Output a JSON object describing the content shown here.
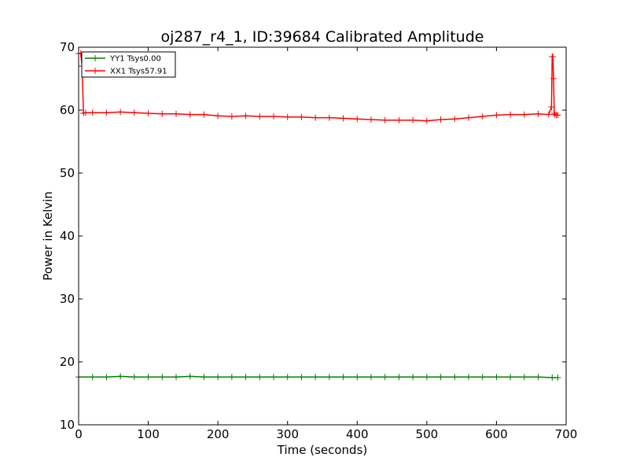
{
  "chart_data": {
    "type": "line",
    "title": "oj287_r4_1, ID:39684 Calibrated Amplitude",
    "xlabel": "Time (seconds)",
    "ylabel": "Power in Kelvin",
    "xlim": [
      0,
      700
    ],
    "ylim": [
      10,
      70
    ],
    "xticks": [
      0,
      100,
      200,
      300,
      400,
      500,
      600,
      700
    ],
    "yticks": [
      10,
      20,
      30,
      40,
      50,
      60,
      70
    ],
    "grid": false,
    "legend_position": "top-left",
    "series": [
      {
        "name": "YY1 Tsys0.00",
        "color": "#008000",
        "marker": "+",
        "x": [
          0,
          20,
          40,
          60,
          80,
          100,
          120,
          140,
          160,
          180,
          200,
          220,
          240,
          260,
          280,
          300,
          320,
          340,
          360,
          380,
          400,
          420,
          440,
          460,
          480,
          500,
          520,
          540,
          560,
          580,
          600,
          620,
          640,
          660,
          680,
          688
        ],
        "y": [
          17.6,
          17.6,
          17.6,
          17.7,
          17.6,
          17.6,
          17.6,
          17.6,
          17.7,
          17.6,
          17.6,
          17.6,
          17.6,
          17.6,
          17.6,
          17.6,
          17.6,
          17.6,
          17.6,
          17.6,
          17.6,
          17.6,
          17.6,
          17.6,
          17.6,
          17.6,
          17.6,
          17.6,
          17.6,
          17.6,
          17.6,
          17.6,
          17.6,
          17.6,
          17.5,
          17.5
        ]
      },
      {
        "name": "XX1 Tsys57.91",
        "color": "#ff0000",
        "marker": "+",
        "x": [
          0,
          3,
          5,
          7,
          10,
          20,
          40,
          60,
          80,
          100,
          120,
          140,
          160,
          180,
          200,
          220,
          240,
          260,
          280,
          300,
          320,
          340,
          360,
          380,
          400,
          420,
          440,
          460,
          480,
          500,
          520,
          540,
          560,
          580,
          600,
          620,
          640,
          660,
          675,
          679,
          680,
          681,
          682,
          683,
          684,
          686,
          688
        ],
        "y": [
          69.0,
          69.0,
          67.0,
          59.5,
          59.6,
          59.6,
          59.6,
          59.7,
          59.6,
          59.5,
          59.4,
          59.4,
          59.3,
          59.3,
          59.1,
          59.0,
          59.1,
          59.0,
          59.0,
          58.9,
          58.9,
          58.8,
          58.8,
          58.7,
          58.6,
          58.5,
          58.4,
          58.4,
          58.4,
          58.3,
          58.5,
          58.6,
          58.8,
          59.0,
          59.2,
          59.3,
          59.3,
          59.4,
          59.3,
          60.5,
          68.5,
          68.5,
          65.0,
          59.5,
          59.3,
          59.2,
          59.2
        ]
      }
    ]
  }
}
